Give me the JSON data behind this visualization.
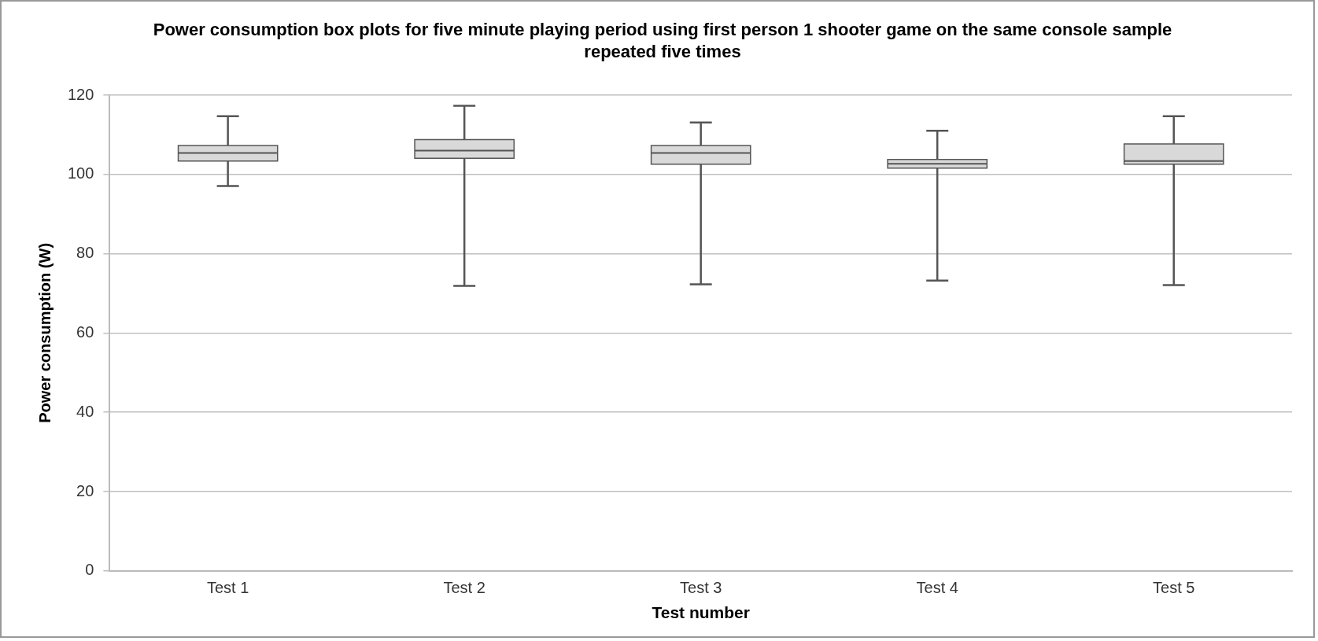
{
  "chart_data": {
    "type": "box",
    "title": "Power consumption box plots for five minute playing period using  first person 1 shooter game on the same console sample repeated five times",
    "xlabel": "Test number",
    "ylabel": "Power consumption (W)",
    "categories": [
      "Test 1",
      "Test 2",
      "Test 3",
      "Test 4",
      "Test 5"
    ],
    "ylim": [
      0,
      120
    ],
    "yticks": [
      0,
      20,
      40,
      60,
      80,
      100,
      120
    ],
    "grid": "y",
    "series": [
      {
        "color": "#d9d9d9",
        "boxes": [
          {
            "low": 97.1,
            "q1": 103.4,
            "median": 105.4,
            "q3": 107.3,
            "high": 114.7
          },
          {
            "low": 71.9,
            "q1": 104.1,
            "median": 106.0,
            "q3": 108.8,
            "high": 117.3
          },
          {
            "low": 72.3,
            "q1": 102.6,
            "median": 105.4,
            "q3": 107.3,
            "high": 113.1
          },
          {
            "low": 73.2,
            "q1": 101.6,
            "median": 102.7,
            "q3": 103.8,
            "high": 111.0
          },
          {
            "low": 72.1,
            "q1": 102.6,
            "median": 103.4,
            "q3": 107.7,
            "high": 114.7
          }
        ]
      }
    ]
  }
}
